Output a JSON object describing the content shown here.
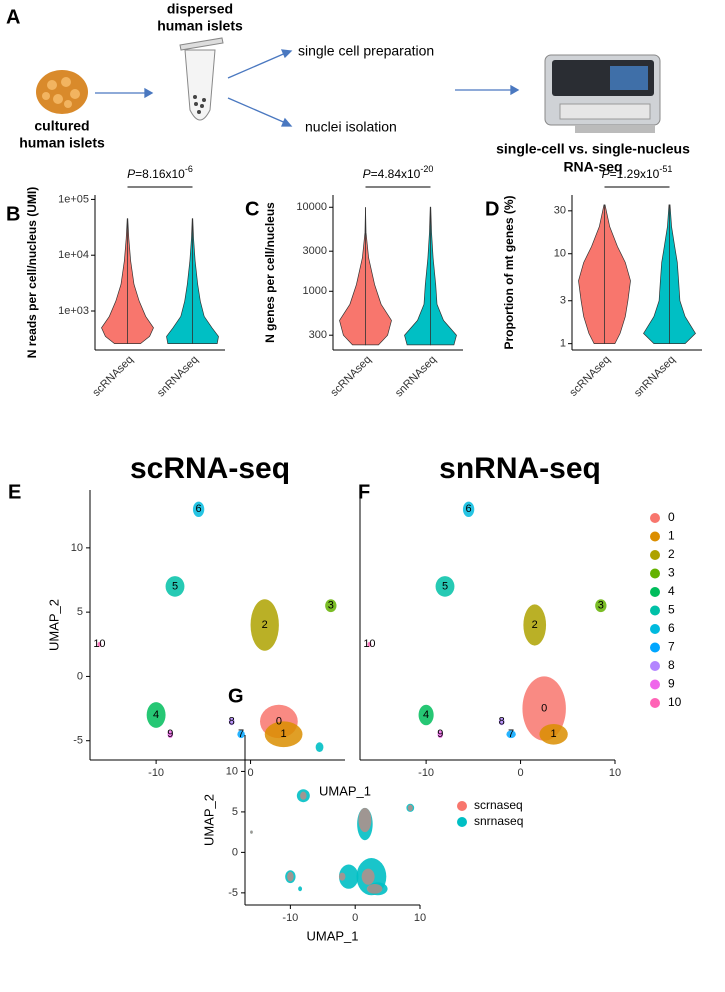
{
  "panel_a": {
    "label": "A",
    "dispersed": [
      "dispersed",
      "human islets"
    ],
    "cultured": [
      "cultured",
      "human islets"
    ],
    "branch_top": "single cell preparation",
    "branch_bottom": "nuclei isolation",
    "result": [
      "single-cell vs. single-nucleus",
      "RNA-seq"
    ]
  },
  "chart_data": [
    {
      "type": "violin",
      "panel_label": "B",
      "y_label": "N reads per cell/nucleus (UMI)",
      "categories": [
        "scRNAseq",
        "snRNAseq"
      ],
      "log_scale": true,
      "ylim": [
        200,
        120000
      ],
      "yticks": [
        {
          "value": 1000,
          "label": "1e+03"
        },
        {
          "value": 10000,
          "label": "1e+04"
        },
        {
          "value": 100000,
          "label": "1e+05"
        }
      ],
      "annotation": {
        "prefix": "P",
        "text": "=8.16x10",
        "exponent": "-6"
      },
      "levels": [
        260,
        350,
        500,
        800,
        1500,
        3000,
        8000,
        20000,
        45000
      ],
      "violins": [
        {
          "color": "#F8766D",
          "widths": [
            0.5,
            0.85,
            1,
            0.7,
            0.45,
            0.25,
            0.12,
            0.05,
            0.01
          ]
        },
        {
          "color": "#00BFC4",
          "widths": [
            0.95,
            1,
            0.75,
            0.45,
            0.3,
            0.2,
            0.1,
            0.04,
            0.01
          ]
        }
      ]
    },
    {
      "type": "violin",
      "panel_label": "C",
      "y_label": "N genes per cell/nucleus",
      "categories": [
        "scRNAseq",
        "snRNAseq"
      ],
      "log_scale": true,
      "ylim": [
        200,
        14000
      ],
      "yticks": [
        300,
        1000,
        3000,
        10000
      ],
      "annotation": {
        "prefix": "P",
        "text": "=4.84x10",
        "exponent": "-20"
      },
      "levels": [
        230,
        300,
        450,
        700,
        1200,
        2500,
        5000,
        10000
      ],
      "violins": [
        {
          "color": "#F8766D",
          "widths": [
            0.5,
            0.85,
            1,
            0.6,
            0.35,
            0.12,
            0.02,
            0
          ]
        },
        {
          "color": "#00BFC4",
          "widths": [
            0.9,
            1,
            0.5,
            0.25,
            0.2,
            0.1,
            0.04,
            0.01
          ]
        }
      ]
    },
    {
      "type": "violin",
      "panel_label": "D",
      "y_label": "Proportion of mt genes (%)",
      "categories": [
        "scRNAseq",
        "snRNAseq"
      ],
      "log_scale": true,
      "ylim": [
        0.85,
        45
      ],
      "yticks": [
        1,
        3,
        10,
        30
      ],
      "annotation": {
        "prefix": "P",
        "text": "=1.29x10",
        "exponent": "-51"
      },
      "levels": [
        1,
        1.3,
        2,
        3,
        5,
        8,
        12,
        20,
        35
      ],
      "violins": [
        {
          "color": "#F8766D",
          "widths": [
            0.4,
            0.6,
            0.8,
            0.9,
            1,
            0.8,
            0.5,
            0.2,
            0.02
          ]
        },
        {
          "color": "#00BFC4",
          "widths": [
            0.6,
            1,
            0.6,
            0.4,
            0.35,
            0.3,
            0.2,
            0.08,
            0.02
          ]
        }
      ]
    },
    {
      "type": "umap",
      "panel_label": "E",
      "title": "scRNA-seq",
      "x_label": "UMAP_1",
      "y_label": "UMAP_2",
      "xlim": [
        -17,
        10
      ],
      "ylim": [
        -6.5,
        14.5
      ],
      "xticks": [
        -10,
        0
      ],
      "yticks": [
        -5,
        0,
        5,
        10
      ],
      "categories": [
        "0",
        "1",
        "2",
        "3",
        "4",
        "5",
        "6",
        "7",
        "8",
        "9",
        "10"
      ],
      "colors": [
        "#F8766D",
        "#DB8E00",
        "#AEA200",
        "#64B200",
        "#00BD5C",
        "#00C1A7",
        "#00BADE",
        "#00A6FF",
        "#B385FF",
        "#EF67EB",
        "#FF63B6"
      ],
      "x": [
        3,
        3.5,
        1.5,
        8.5,
        -10,
        -8,
        -5.5,
        -1,
        -2,
        -8.5,
        -16
      ],
      "y": [
        -3.5,
        -4.5,
        4,
        5.5,
        -3,
        7,
        13,
        -4.5,
        -3.5,
        -4.5,
        2.5
      ],
      "x_spread": [
        2,
        2,
        1.5,
        0.6,
        1,
        1,
        0.6,
        0.4,
        0.3,
        0.3,
        0.2
      ],
      "y_spread": [
        1.3,
        1,
        2,
        0.5,
        1,
        0.8,
        0.6,
        0.3,
        0.3,
        0.3,
        0.2
      ]
    },
    {
      "type": "umap",
      "panel_label": "F",
      "title": "snRNA-seq",
      "xlim": [
        -17,
        10
      ],
      "ylim": [
        -6.5,
        14.5
      ],
      "xticks": [
        -10,
        0,
        10
      ],
      "legend": "right",
      "categories": [
        "0",
        "1",
        "2",
        "3",
        "4",
        "5",
        "6",
        "7",
        "8",
        "9",
        "10"
      ],
      "colors": [
        "#F8766D",
        "#DB8E00",
        "#AEA200",
        "#64B200",
        "#00BD5C",
        "#00C1A7",
        "#00BADE",
        "#00A6FF",
        "#B385FF",
        "#EF67EB",
        "#FF63B6"
      ],
      "x": [
        2.5,
        3.5,
        1.5,
        8.5,
        -10,
        -8,
        -5.5,
        -1,
        -2,
        -8.5,
        -16
      ],
      "y": [
        -2.5,
        -4.5,
        4,
        5.5,
        -3,
        7,
        13,
        -4.5,
        -3.5,
        -4.5,
        2.5
      ],
      "x_spread": [
        2.3,
        1.5,
        1.2,
        0.6,
        0.8,
        1,
        0.6,
        0.5,
        0.3,
        0.3,
        0.2
      ],
      "y_spread": [
        2.5,
        0.8,
        1.6,
        0.5,
        0.8,
        0.8,
        0.6,
        0.3,
        0.3,
        0.3,
        0.2
      ]
    },
    {
      "type": "scatter",
      "panel_label": "G",
      "x_label": "UMAP_1",
      "y_label": "UMAP_2",
      "xlim": [
        -17,
        10
      ],
      "ylim": [
        -6.5,
        14.5
      ],
      "xticks": [
        -10,
        0,
        10
      ],
      "yticks": [
        -5,
        0,
        5,
        10
      ],
      "legend": "right",
      "series": [
        {
          "name": "scrnaseq",
          "color": "#F8766D",
          "x": [
            2,
            3,
            1.5,
            8.5,
            -10,
            -8,
            -2,
            -16
          ],
          "y": [
            -3,
            -4.5,
            4,
            5.5,
            -3,
            7,
            -3,
            2.5
          ],
          "x_spread": [
            1,
            1.2,
            1,
            0.4,
            0.5,
            0.5,
            0.5,
            0.2
          ],
          "y_spread": [
            1,
            0.6,
            1.5,
            0.4,
            0.6,
            0.5,
            0.5,
            0.2
          ]
        },
        {
          "name": "snrnaseq",
          "color": "#00BFC4",
          "x": [
            2.5,
            3.5,
            1.5,
            8.5,
            -10,
            -8,
            -5.5,
            -1,
            -8.5,
            -16
          ],
          "y": [
            -3,
            -4.5,
            3.5,
            5.5,
            -3,
            7,
            13,
            -3,
            -4.5,
            2.5
          ],
          "x_spread": [
            2.3,
            1.5,
            1.2,
            0.6,
            0.8,
            1,
            0.6,
            1.5,
            0.3,
            0.2
          ],
          "y_spread": [
            2.3,
            0.8,
            2,
            0.5,
            0.8,
            0.8,
            0.6,
            1.5,
            0.3,
            0.2
          ]
        }
      ]
    }
  ]
}
